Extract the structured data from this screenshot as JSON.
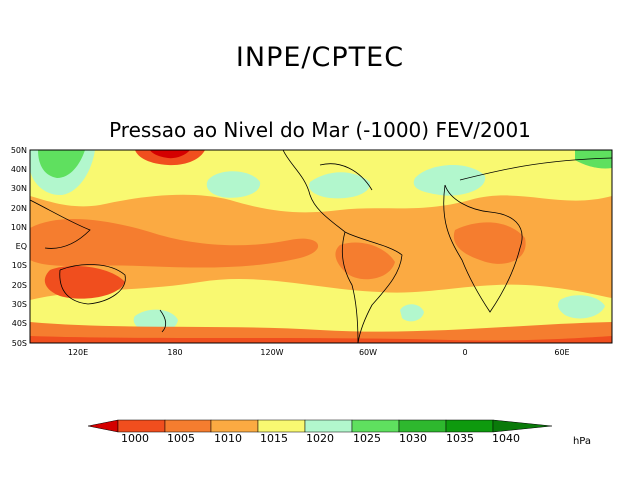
{
  "header": {
    "institution": "INPE/CPTEC",
    "subtitle": "Pressao ao Nivel do Mar (-1000) FEV/2001"
  },
  "map": {
    "lat_labels": [
      "50N",
      "40N",
      "30N",
      "20N",
      "10N",
      "EQ",
      "10S",
      "20S",
      "30S",
      "40S",
      "50S"
    ],
    "lon_labels": [
      "120E",
      "180",
      "120W",
      "60W",
      "0",
      "60E"
    ]
  },
  "colorbar": {
    "unit": "hPa",
    "levels": [
      "1000",
      "1005",
      "1010",
      "1015",
      "1020",
      "1025",
      "1030",
      "1035",
      "1040"
    ],
    "colors": [
      "#d40000",
      "#f04e1e",
      "#f57d2f",
      "#fbaa42",
      "#f9f971",
      "#b2f7cd",
      "#5fe05f",
      "#2eb82e",
      "#0e9a0e",
      "#0a7a0a"
    ]
  }
}
